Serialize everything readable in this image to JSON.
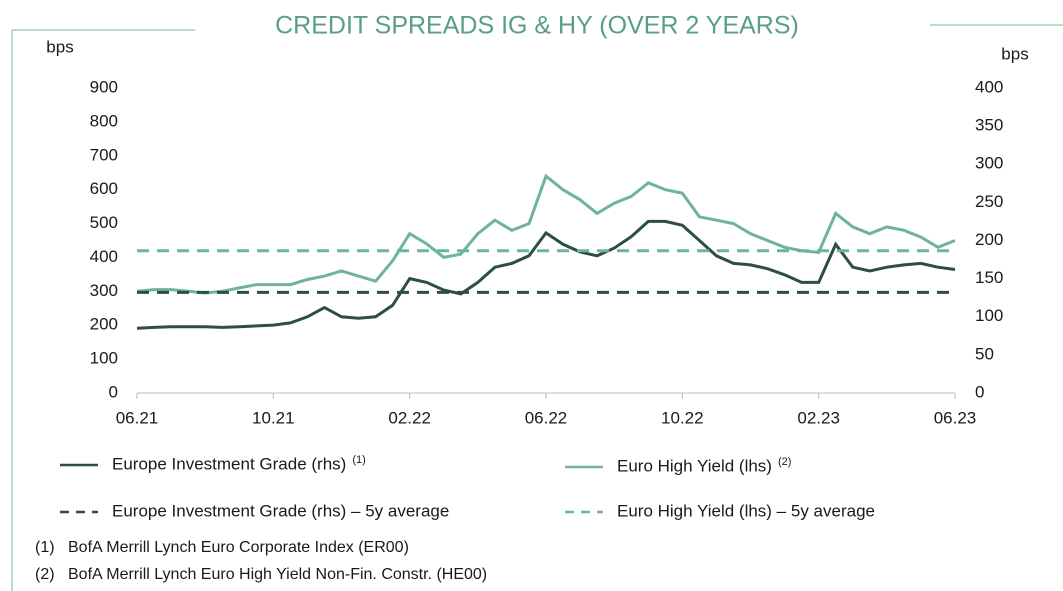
{
  "chart_data": {
    "type": "line",
    "title": "CREDIT SPREADS IG & HY (OVER 2 YEARS)",
    "y_label": "bps",
    "y2_label": "bps",
    "categories": [
      "06.21",
      null,
      null,
      null,
      null,
      null,
      null,
      null,
      "10.21",
      null,
      null,
      null,
      null,
      null,
      null,
      null,
      "02.22",
      null,
      null,
      null,
      null,
      null,
      null,
      null,
      "06.22",
      null,
      null,
      null,
      null,
      null,
      null,
      null,
      "10.22",
      null,
      null,
      null,
      null,
      null,
      null,
      null,
      "02.23",
      null,
      null,
      null,
      null,
      null,
      null,
      null,
      "06.23"
    ],
    "ylim": [
      0,
      900
    ],
    "yticks": [
      0,
      100,
      200,
      300,
      400,
      500,
      600,
      700,
      800,
      900
    ],
    "y2lim": [
      0,
      400
    ],
    "y2ticks": [
      0,
      50,
      100,
      150,
      200,
      250,
      300,
      350,
      400
    ],
    "series": [
      {
        "name": "Europe Investment Grade (rhs)",
        "note": "(1)",
        "color": "#2d4f41",
        "axis": "y2",
        "dashed": false,
        "values": [
          85,
          86,
          87,
          87,
          87,
          86,
          87,
          88,
          89,
          92,
          100,
          112,
          100,
          98,
          100,
          115,
          150,
          145,
          135,
          130,
          145,
          165,
          170,
          180,
          210,
          195,
          185,
          180,
          190,
          205,
          225,
          225,
          220,
          200,
          180,
          170,
          168,
          163,
          155,
          145,
          145,
          195,
          165,
          160,
          165,
          168,
          170,
          165,
          162
        ]
      },
      {
        "name": "Euro High Yield (lhs)",
        "note": "(2)",
        "color": "#6db596",
        "dashed": false,
        "values": [
          300,
          305,
          305,
          300,
          295,
          300,
          310,
          320,
          320,
          320,
          335,
          345,
          360,
          345,
          330,
          390,
          470,
          440,
          400,
          410,
          470,
          510,
          480,
          500,
          640,
          600,
          570,
          530,
          560,
          580,
          620,
          600,
          590,
          520,
          510,
          500,
          470,
          450,
          430,
          420,
          415,
          530,
          490,
          470,
          490,
          480,
          460,
          430,
          450
        ]
      },
      {
        "name": "Europe Investment Grade (rhs) – 5y average",
        "color": "#2d4f41",
        "axis": "y2",
        "dashed": true,
        "values": [
          132,
          132,
          132,
          132,
          132,
          132,
          132,
          132,
          132,
          132,
          132,
          132,
          132,
          132,
          132,
          132,
          132,
          132,
          132,
          132,
          132,
          132,
          132,
          132,
          132,
          132,
          132,
          132,
          132,
          132,
          132,
          132,
          132,
          132,
          132,
          132,
          132,
          132,
          132,
          132,
          132,
          132,
          132,
          132,
          132,
          132,
          132,
          132,
          132
        ]
      },
      {
        "name": "Euro High Yield (lhs) – 5y average",
        "color": "#6db596",
        "dashed": true,
        "values": [
          420,
          420,
          420,
          420,
          420,
          420,
          420,
          420,
          420,
          420,
          420,
          420,
          420,
          420,
          420,
          420,
          420,
          420,
          420,
          420,
          420,
          420,
          420,
          420,
          420,
          420,
          420,
          420,
          420,
          420,
          420,
          420,
          420,
          420,
          420,
          420,
          420,
          420,
          420,
          420,
          420,
          420,
          420,
          420,
          420,
          420,
          420,
          420,
          420
        ]
      }
    ],
    "footnotes": [
      {
        "ref": "(1)",
        "text": "BofA Merrill Lynch Euro Corporate Index (ER00)"
      },
      {
        "ref": "(2)",
        "text": "BofA Merrill Lynch Euro High Yield Non-Fin. Constr. (HE00)"
      }
    ]
  }
}
